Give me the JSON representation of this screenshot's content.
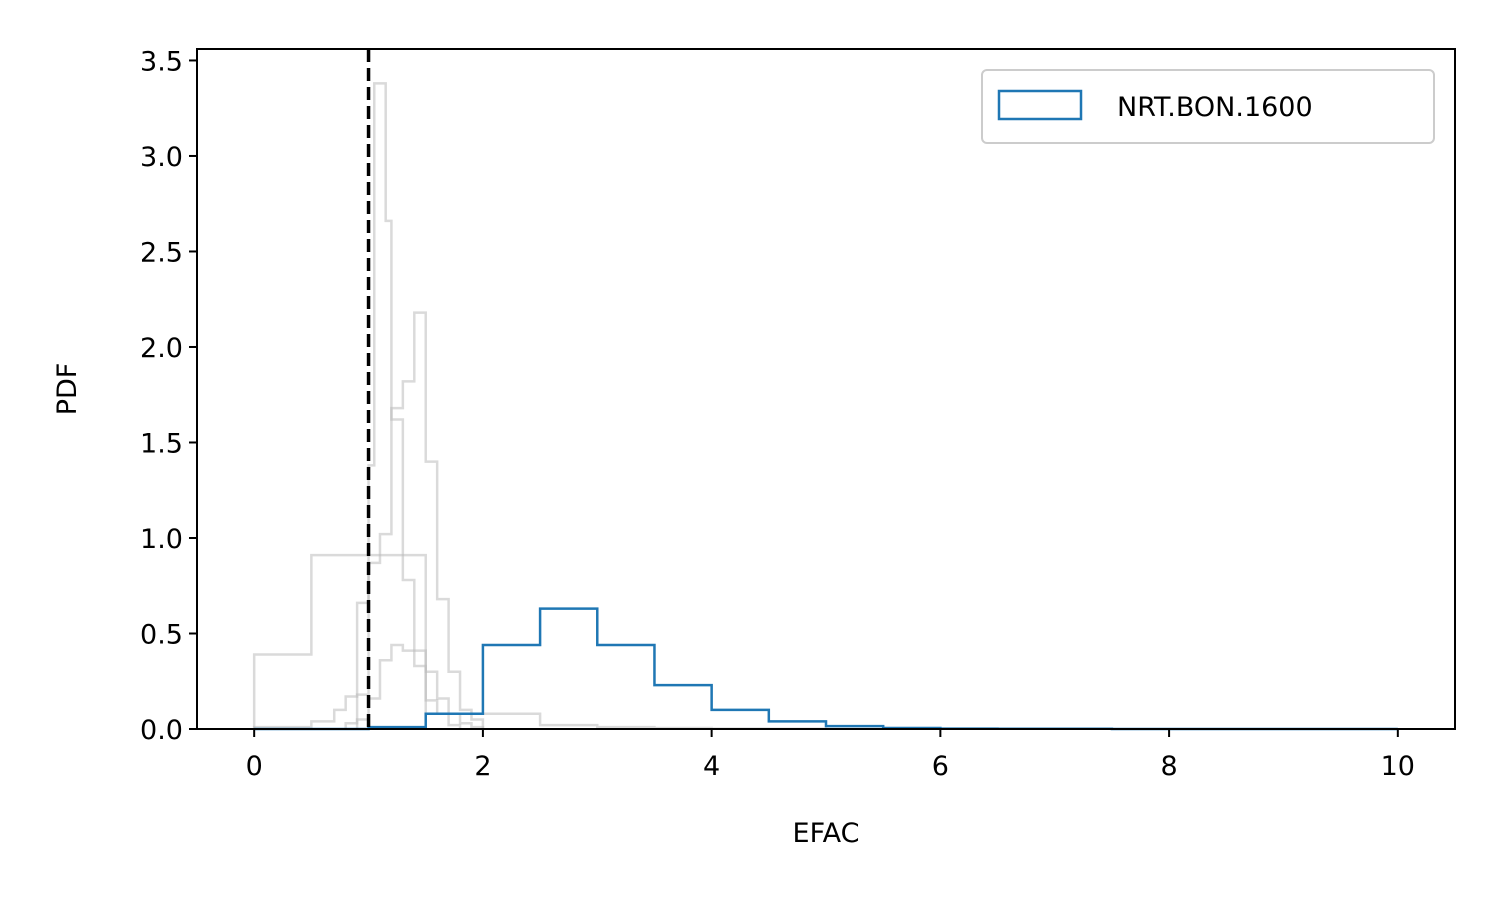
{
  "chart_data": {
    "type": "histogram",
    "xlabel": "EFAC",
    "ylabel": "PDF",
    "xlim": [
      -0.5,
      10.5
    ],
    "ylim": [
      0,
      3.56
    ],
    "xticks": [
      0,
      2,
      4,
      6,
      8,
      10
    ],
    "xtick_labels": [
      "0",
      "2",
      "4",
      "6",
      "8",
      "10"
    ],
    "yticks": [
      0,
      0.5,
      1.0,
      1.5,
      2.0,
      2.5,
      3.0,
      3.5
    ],
    "ytick_labels": [
      "0.0",
      "0.5",
      "1.0",
      "1.5",
      "2.0",
      "2.5",
      "3.0",
      "3.5"
    ],
    "reference_line": {
      "x": 1.0,
      "style": "dashed",
      "color": "#000000"
    },
    "legend": {
      "location": "upper right",
      "entries": [
        "NRT.BON.1600"
      ]
    },
    "highlight_color": "#1f77b4",
    "background_color": "#bbbbbb",
    "series": [
      {
        "name": "NRT.BON.1600",
        "highlight": true,
        "edges": [
          0,
          0.5,
          1.0,
          1.5,
          2.0,
          2.5,
          3.0,
          3.5,
          4.0,
          4.5,
          5.0,
          5.5,
          6.0,
          6.5,
          7.0,
          7.5,
          8.0,
          8.5,
          9.0,
          9.5,
          10.0
        ],
        "values": [
          0,
          0,
          0.01,
          0.08,
          0.44,
          0.63,
          0.44,
          0.23,
          0.1,
          0.04,
          0.015,
          0.005,
          0.002,
          0.001,
          0.001,
          0,
          0,
          0,
          0,
          0
        ]
      },
      {
        "highlight": false,
        "edges": [
          0,
          0.5,
          1.0,
          1.5,
          2.0,
          2.5,
          3.0,
          3.5,
          4.0,
          4.5,
          5.0
        ],
        "values": [
          0.39,
          0.91,
          0.91,
          0.08,
          0.08,
          0.02,
          0.01,
          0.005,
          0.002,
          0.001
        ]
      },
      {
        "highlight": false,
        "edges": [
          0,
          0.5,
          0.7,
          0.8,
          0.9,
          1.0,
          1.05,
          1.1,
          1.15,
          1.2,
          1.3,
          1.4,
          1.5,
          1.6,
          1.7,
          1.8
        ],
        "values": [
          0.01,
          0.04,
          0.1,
          0.17,
          0.18,
          1.38,
          3.38,
          3.38,
          2.66,
          1.62,
          0.78,
          0.33,
          0.15,
          0.08,
          0.02
        ]
      },
      {
        "highlight": false,
        "edges": [
          0.8,
          0.9,
          1.0,
          1.1,
          1.2,
          1.3,
          1.4,
          1.45,
          1.5,
          1.55,
          1.6,
          1.7,
          1.8,
          1.9,
          2.0
        ],
        "values": [
          0.03,
          0.66,
          0.87,
          1.02,
          1.68,
          1.82,
          2.18,
          2.18,
          1.4,
          1.4,
          0.68,
          0.3,
          0.1,
          0.05
        ]
      },
      {
        "highlight": false,
        "edges": [
          0.9,
          1.0,
          1.1,
          1.2,
          1.3,
          1.4,
          1.5,
          1.6,
          1.7,
          1.8,
          1.9,
          2.0
        ],
        "values": [
          0.05,
          0.16,
          0.36,
          0.44,
          0.41,
          0.41,
          0.3,
          0.16,
          0.08,
          0.03,
          0.01
        ]
      }
    ]
  }
}
